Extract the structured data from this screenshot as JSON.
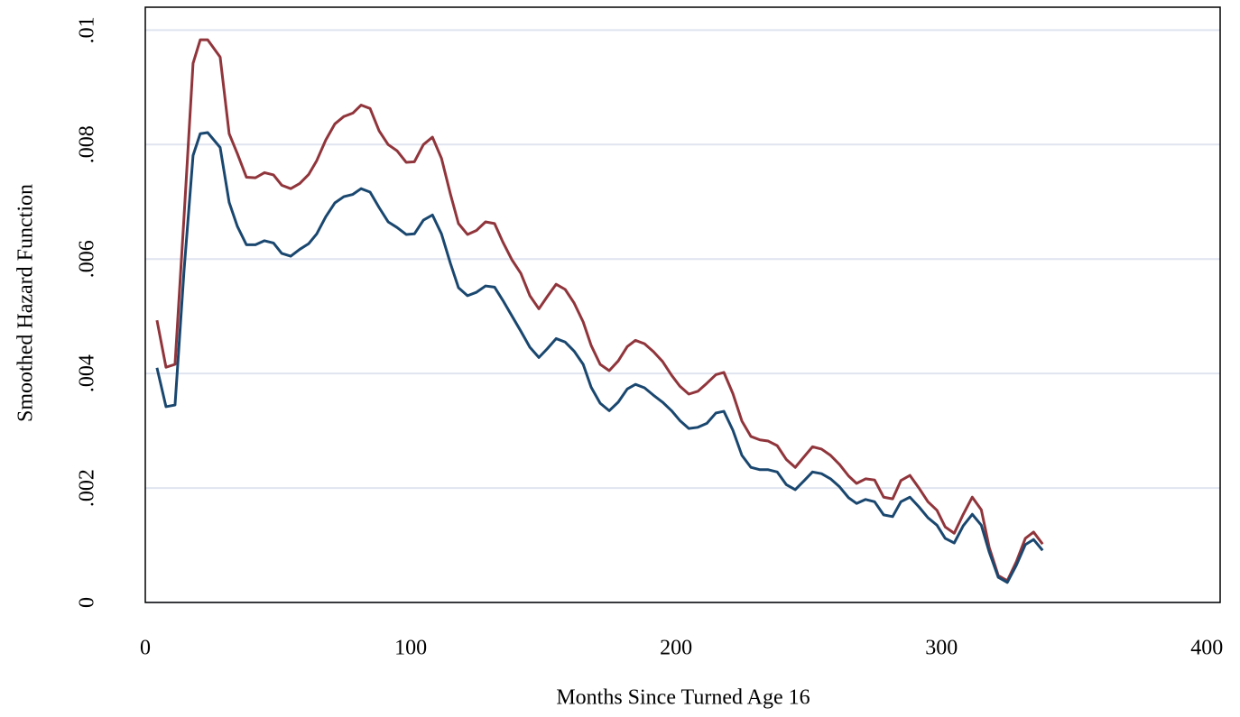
{
  "chart_data": {
    "type": "line",
    "xlabel": "Months Since Turned Age 16",
    "ylabel": "Smoothed Hazard Function",
    "xlim": [
      0,
      405
    ],
    "xticks": [
      0,
      100,
      200,
      300,
      400
    ],
    "ylim": [
      0,
      0.0104
    ],
    "yticks": [
      0,
      {
        "value": 0.002,
        "label": ".002"
      },
      {
        "value": 0.004,
        "label": ".004"
      },
      {
        "value": 0.006,
        "label": ".006"
      },
      {
        "value": 0.008,
        "label": ".008"
      },
      {
        "value": 0.01,
        "label": ".01"
      }
    ],
    "grid": true,
    "x": [
      4.4,
      7.8,
      11.2,
      14.6,
      18.0,
      20.7,
      23.5,
      28.2,
      31.6,
      34.7,
      38.1,
      41.5,
      44.9,
      48.3,
      51.4,
      54.8,
      58.2,
      61.6,
      64.6,
      68.0,
      71.4,
      74.8,
      78.2,
      81.3,
      84.7,
      88.1,
      91.5,
      94.9,
      98.3,
      101.4,
      104.8,
      108.2,
      111.6,
      115.0,
      118.0,
      121.4,
      124.8,
      128.2,
      131.6,
      134.7,
      138.1,
      141.5,
      144.9,
      148.3,
      151.4,
      154.8,
      158.2,
      161.6,
      165.0,
      168.0,
      171.4,
      174.8,
      178.2,
      181.6,
      184.7,
      188.1,
      191.5,
      194.9,
      198.3,
      201.4,
      204.8,
      208.2,
      211.6,
      215.0,
      218.0,
      221.4,
      224.8,
      228.2,
      231.6,
      234.7,
      238.1,
      241.5,
      244.9,
      248.3,
      251.4,
      254.8,
      258.2,
      261.6,
      265.0,
      268.0,
      271.4,
      274.8,
      278.2,
      281.6,
      284.7,
      288.1,
      291.5,
      294.9,
      298.3,
      301.4,
      304.8,
      308.2,
      311.6,
      315.0,
      318.0,
      321.4,
      324.8,
      328.2,
      331.6,
      334.7,
      338.1
    ],
    "series": [
      {
        "color": "#90353b",
        "values": [
          0.00493,
          0.00411,
          0.00416,
          0.00674,
          0.00942,
          0.00983,
          0.00983,
          0.00953,
          0.00819,
          0.00784,
          0.00743,
          0.00742,
          0.00751,
          0.00747,
          0.00729,
          0.00723,
          0.00732,
          0.00748,
          0.00772,
          0.00808,
          0.00836,
          0.00849,
          0.00855,
          0.00869,
          0.00863,
          0.00824,
          0.008,
          0.00789,
          0.00769,
          0.0077,
          0.008,
          0.00813,
          0.00776,
          0.00713,
          0.00662,
          0.00643,
          0.0065,
          0.00665,
          0.00662,
          0.0063,
          0.00599,
          0.00575,
          0.00536,
          0.00513,
          0.00534,
          0.00556,
          0.00547,
          0.00523,
          0.0049,
          0.00449,
          0.00416,
          0.00405,
          0.00422,
          0.00447,
          0.00458,
          0.00452,
          0.00438,
          0.00421,
          0.00397,
          0.00378,
          0.00364,
          0.00369,
          0.00383,
          0.00398,
          0.00402,
          0.00365,
          0.00317,
          0.0029,
          0.00284,
          0.00282,
          0.00274,
          0.0025,
          0.00236,
          0.00255,
          0.00272,
          0.00268,
          0.00257,
          0.00241,
          0.00221,
          0.00208,
          0.00216,
          0.00214,
          0.00184,
          0.00181,
          0.00213,
          0.00222,
          0.002,
          0.00176,
          0.00161,
          0.00132,
          0.00121,
          0.00154,
          0.00184,
          0.00162,
          0.00096,
          0.00047,
          0.00038,
          0.00071,
          0.00112,
          0.00123,
          0.00102
        ]
      },
      {
        "color": "#1a476f",
        "values": [
          0.0041,
          0.00342,
          0.00345,
          0.0058,
          0.00781,
          0.00819,
          0.00821,
          0.00795,
          0.00699,
          0.00657,
          0.00625,
          0.00625,
          0.00632,
          0.00628,
          0.0061,
          0.00605,
          0.00617,
          0.00627,
          0.00644,
          0.00674,
          0.00698,
          0.00709,
          0.00713,
          0.00723,
          0.00717,
          0.0069,
          0.00665,
          0.00655,
          0.00643,
          0.00644,
          0.00668,
          0.00677,
          0.00644,
          0.00592,
          0.0055,
          0.00536,
          0.00542,
          0.00553,
          0.00551,
          0.00528,
          0.00501,
          0.00474,
          0.00446,
          0.00428,
          0.00443,
          0.00461,
          0.00455,
          0.00439,
          0.00416,
          0.00376,
          0.00348,
          0.00335,
          0.0035,
          0.00373,
          0.00381,
          0.00375,
          0.00362,
          0.0035,
          0.00335,
          0.00318,
          0.00304,
          0.00306,
          0.00313,
          0.00331,
          0.00334,
          0.00301,
          0.00257,
          0.00236,
          0.00232,
          0.00232,
          0.00228,
          0.00206,
          0.00197,
          0.00213,
          0.00228,
          0.00225,
          0.00216,
          0.00202,
          0.00183,
          0.00173,
          0.0018,
          0.00176,
          0.00153,
          0.0015,
          0.00176,
          0.00184,
          0.00167,
          0.00148,
          0.00135,
          0.00112,
          0.00104,
          0.00134,
          0.00154,
          0.00135,
          0.00088,
          0.00044,
          0.00035,
          0.00065,
          0.00101,
          0.0011,
          0.00091
        ]
      }
    ]
  }
}
